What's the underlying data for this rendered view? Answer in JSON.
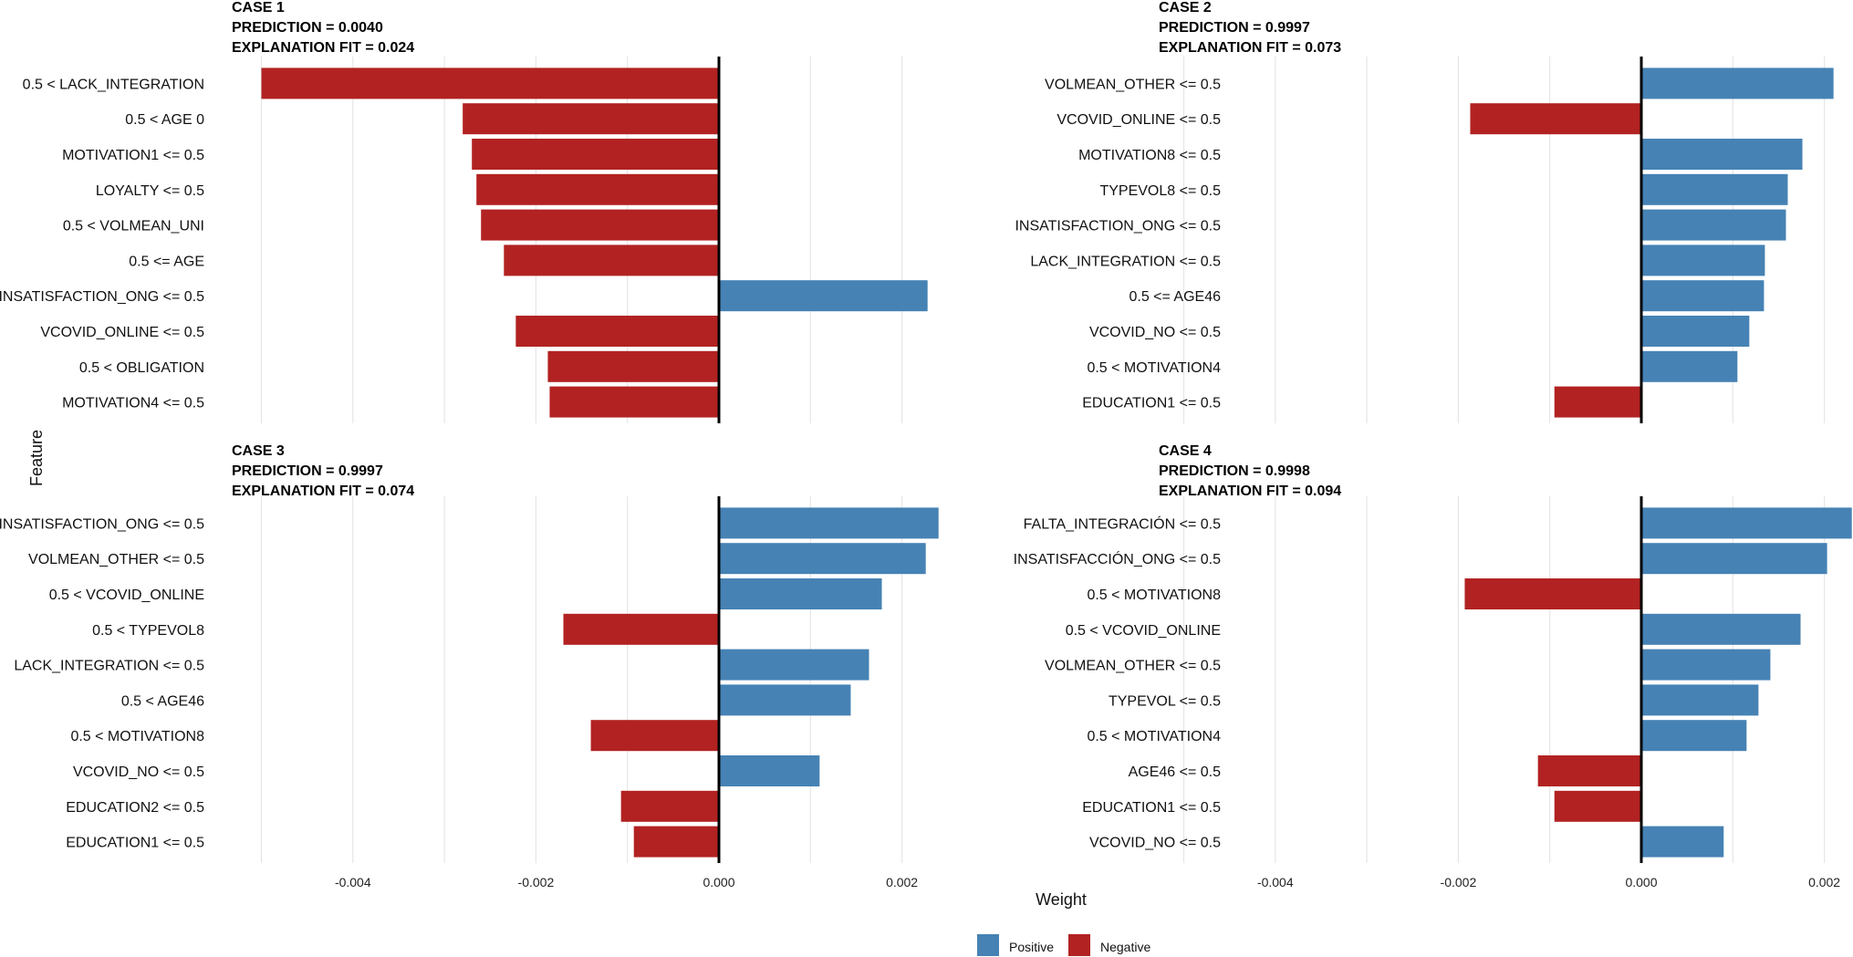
{
  "chart_data": {
    "type": "bar",
    "orientation": "horizontal",
    "xlabel": "Weight",
    "ylabel": "Feature",
    "xlim": [
      -0.005,
      0.0023
    ],
    "x_ticks": [
      "-0.004",
      "-0.002",
      "0.000",
      "0.002"
    ],
    "x_tick_values": [
      -0.004,
      -0.002,
      0.0,
      0.002
    ],
    "grid": true,
    "colors": {
      "Positive": "#4682B4",
      "Negative": "#B22222"
    },
    "legend": {
      "placement": "bottom",
      "items": [
        {
          "label": "Positive",
          "color": "#4682B4"
        },
        {
          "label": "Negative",
          "color": "#B22222"
        }
      ]
    },
    "panels": [
      {
        "title_lines": [
          "CASE 1",
          "PREDICTION = 0.0040",
          "EXPLANATION FIT = 0.024"
        ],
        "categories": [
          "0.5 < LACK_INTEGRATION",
          "0.5 < AGE 0",
          "MOTIVATION1 <= 0.5",
          "LOYALTY <= 0.5",
          "0.5 < VOLMEAN_UNI",
          "0.5 <= AGE",
          "INSATISFACTION_ONG <= 0.5",
          "VCOVID_ONLINE <= 0.5",
          "0.5 < OBLIGATION",
          "MOTIVATION4 <= 0.5"
        ],
        "values": [
          -0.005,
          -0.0028,
          -0.0027,
          -0.00265,
          -0.0026,
          -0.00235,
          0.00228,
          -0.00222,
          -0.00187,
          -0.00185
        ]
      },
      {
        "title_lines": [
          "CASE 2",
          "PREDICTION = 0.9997",
          "EXPLANATION FIT = 0.073"
        ],
        "categories": [
          "VOLMEAN_OTHER <= 0.5",
          "VCOVID_ONLINE <= 0.5",
          "MOTIVATION8 <= 0.5",
          "TYPEVOL8 <= 0.5",
          "INSATISFACTION_ONG <= 0.5",
          "LACK_INTEGRATION <= 0.5",
          "0.5 <= AGE46",
          "VCOVID_NO <= 0.5",
          "0.5 < MOTIVATION4",
          "EDUCATION1 <= 0.5"
        ],
        "values": [
          0.0021,
          -0.00187,
          0.00176,
          0.0016,
          0.00158,
          0.00135,
          0.00134,
          0.00118,
          0.00105,
          -0.00095
        ]
      },
      {
        "title_lines": [
          "CASE 3",
          "PREDICTION = 0.9997",
          "EXPLANATION FIT = 0.074"
        ],
        "categories": [
          "INSATISFACTION_ONG <= 0.5",
          "VOLMEAN_OTHER <= 0.5",
          "0.5 < VCOVID_ONLINE",
          "0.5 < TYPEVOL8",
          "LACK_INTEGRATION <= 0.5",
          "0.5 < AGE46",
          "0.5 < MOTIVATION8",
          "VCOVID_NO <= 0.5",
          "EDUCATION2 <= 0.5",
          "EDUCATION1 <= 0.5"
        ],
        "values": [
          0.0024,
          0.00226,
          0.00178,
          -0.0017,
          0.00164,
          0.00144,
          -0.0014,
          0.0011,
          -0.00107,
          -0.00093
        ]
      },
      {
        "title_lines": [
          "CASE 4",
          "PREDICTION = 0.9998",
          "EXPLANATION FIT = 0.094"
        ],
        "categories": [
          "FALTA_INTEGRACIÓN <= 0.5",
          "INSATISFACCIÓN_ONG <= 0.5",
          "0.5 < MOTIVATION8",
          "0.5 < VCOVID_ONLINE",
          "VOLMEAN_OTHER <= 0.5",
          "TYPEVOL <= 0.5",
          "0.5 < MOTIVATION4",
          "AGE46 <= 0.5",
          "EDUCATION1 <= 0.5",
          "VCOVID_NO <= 0.5"
        ],
        "values": [
          0.0023,
          0.00203,
          -0.00193,
          0.00174,
          0.00141,
          0.00128,
          0.00115,
          -0.00113,
          -0.00095,
          0.0009
        ]
      }
    ]
  }
}
